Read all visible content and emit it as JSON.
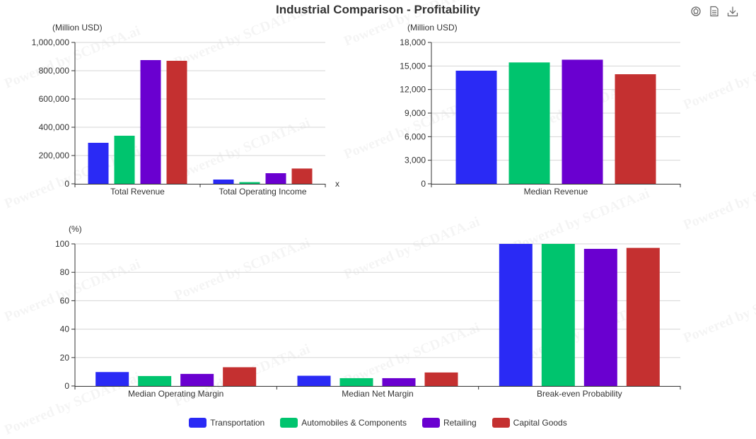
{
  "title": "Industrial Comparison - Profitability",
  "toolbox": [
    {
      "icon": "reset-icon"
    },
    {
      "icon": "data-view-icon"
    },
    {
      "icon": "download-icon"
    }
  ],
  "watermark": "Powered by SCDATA.ai",
  "colors": {
    "Transportation": "#2a2af5",
    "Automobiles & Components": "#00c46e",
    "Retailing": "#6a00d0",
    "Capital Goods": "#c43030"
  },
  "legend": [
    "Transportation",
    "Automobiles & Components",
    "Retailing",
    "Capital Goods"
  ],
  "chart_data": [
    {
      "type": "bar",
      "ylabel": "(Million USD)",
      "xlabel": "x",
      "ylim": [
        0,
        1000000
      ],
      "yticks": [
        "0",
        "200,000",
        "400,000",
        "600,000",
        "800,000",
        "1,000,000"
      ],
      "categories": [
        "Total Revenue",
        "Total Operating Income"
      ],
      "series": [
        {
          "name": "Transportation",
          "values": [
            290000,
            30000
          ]
        },
        {
          "name": "Automobiles & Components",
          "values": [
            340000,
            12000
          ]
        },
        {
          "name": "Retailing",
          "values": [
            875000,
            75000
          ]
        },
        {
          "name": "Capital Goods",
          "values": [
            870000,
            108000
          ]
        }
      ]
    },
    {
      "type": "bar",
      "ylabel": "(Million USD)",
      "ylim": [
        0,
        18000
      ],
      "yticks": [
        "0",
        "3,000",
        "6,000",
        "9,000",
        "12,000",
        "15,000",
        "18,000"
      ],
      "categories": [
        "Median Revenue"
      ],
      "series": [
        {
          "name": "Transportation",
          "values": [
            14400
          ]
        },
        {
          "name": "Automobiles & Components",
          "values": [
            15450
          ]
        },
        {
          "name": "Retailing",
          "values": [
            15800
          ]
        },
        {
          "name": "Capital Goods",
          "values": [
            13950
          ]
        }
      ]
    },
    {
      "type": "bar",
      "ylabel": "(%)",
      "ylim": [
        0,
        100
      ],
      "yticks": [
        "0",
        "20",
        "40",
        "60",
        "80",
        "100"
      ],
      "categories": [
        "Median Operating Margin",
        "Median Net Margin",
        "Break-even Probability"
      ],
      "series": [
        {
          "name": "Transportation",
          "values": [
            9.8,
            7.2,
            100
          ]
        },
        {
          "name": "Automobiles & Components",
          "values": [
            7.0,
            5.5,
            100
          ]
        },
        {
          "name": "Retailing",
          "values": [
            8.5,
            5.5,
            96.5
          ]
        },
        {
          "name": "Capital Goods",
          "values": [
            13.2,
            9.5,
            97.2
          ]
        }
      ]
    }
  ]
}
